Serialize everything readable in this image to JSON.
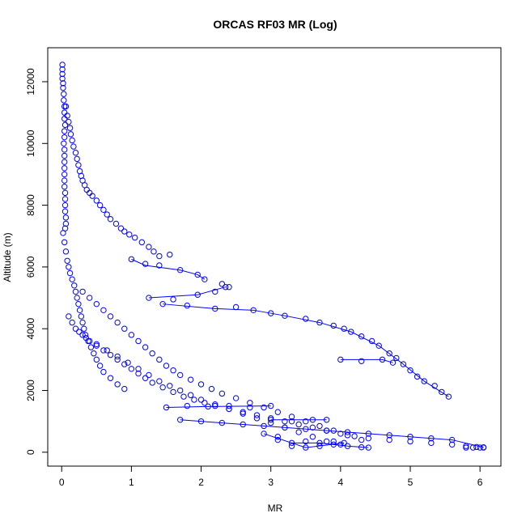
{
  "chart_data": {
    "type": "scatter",
    "title": "ORCAS RF03 MR (Log)",
    "xlabel": "MR",
    "ylabel": "Altitude (m)",
    "xlim": [
      -0.2,
      6.3
    ],
    "ylim": [
      -450,
      13100
    ],
    "x_ticks": [
      0,
      1,
      2,
      3,
      4,
      5,
      6
    ],
    "y_ticks": [
      0,
      2000,
      4000,
      6000,
      8000,
      10000,
      12000
    ],
    "grid": false,
    "legend": "none",
    "color": "#0000ff",
    "marker": "open-circle",
    "series": [
      {
        "values_note": "",
        "points": [
          [
            0.01,
            12550
          ],
          [
            0.01,
            12400
          ],
          [
            0.01,
            12250
          ],
          [
            0.01,
            12100
          ],
          [
            0.02,
            11950
          ],
          [
            0.02,
            11800
          ],
          [
            0.03,
            11600
          ],
          [
            0.03,
            11400
          ],
          [
            0.04,
            11200
          ],
          [
            0.04,
            11000
          ],
          [
            0.04,
            10800
          ],
          [
            0.05,
            10600
          ],
          [
            0.04,
            10400
          ],
          [
            0.04,
            10200
          ],
          [
            0.03,
            10000
          ],
          [
            0.04,
            9800
          ],
          [
            0.04,
            9600
          ],
          [
            0.04,
            9400
          ],
          [
            0.04,
            9200
          ],
          [
            0.04,
            9000
          ],
          [
            0.04,
            8800
          ],
          [
            0.04,
            8600
          ],
          [
            0.05,
            8400
          ],
          [
            0.05,
            8200
          ],
          [
            0.05,
            8000
          ],
          [
            0.05,
            7800
          ],
          [
            0.06,
            7600
          ],
          [
            0.06,
            7400
          ],
          [
            0.05,
            7250
          ],
          [
            0.06,
            11200
          ],
          [
            0.08,
            10900
          ],
          [
            0.1,
            10700
          ],
          [
            0.12,
            10500
          ],
          [
            0.13,
            10300
          ],
          [
            0.15,
            10100
          ],
          [
            0.17,
            9900
          ],
          [
            0.2,
            9700
          ],
          [
            0.22,
            9500
          ],
          [
            0.24,
            9300
          ],
          [
            0.26,
            9100
          ],
          [
            0.28,
            8950
          ],
          [
            0.3,
            8800
          ],
          [
            0.33,
            8650
          ],
          [
            0.36,
            8500
          ],
          [
            0.4,
            8400
          ],
          [
            0.44,
            8300
          ],
          [
            0.5,
            8150
          ],
          [
            0.55,
            8000
          ],
          [
            0.6,
            7850
          ],
          [
            0.65,
            7700
          ],
          [
            0.7,
            7550
          ],
          [
            0.78,
            7400
          ],
          [
            0.85,
            7250
          ],
          [
            0.9,
            7150
          ],
          [
            0.97,
            7050
          ],
          [
            1.05,
            6950
          ],
          [
            1.15,
            6800
          ],
          [
            1.25,
            6650
          ],
          [
            1.32,
            6500
          ],
          [
            1.4,
            6350
          ],
          [
            1.55,
            6400
          ],
          [
            1.0,
            6250
          ],
          [
            1.2,
            6100
          ],
          [
            1.4,
            6050
          ],
          [
            1.7,
            5900
          ],
          [
            1.95,
            5750
          ],
          [
            2.05,
            5600
          ],
          [
            2.3,
            5450
          ],
          [
            2.4,
            5350
          ],
          [
            1.25,
            5000
          ],
          [
            1.6,
            4950
          ],
          [
            1.95,
            5100
          ],
          [
            2.2,
            5200
          ],
          [
            2.35,
            5350
          ],
          [
            1.45,
            4800
          ],
          [
            1.8,
            4750
          ],
          [
            2.2,
            4650
          ],
          [
            2.5,
            4700
          ],
          [
            2.75,
            4600
          ],
          [
            3.0,
            4500
          ],
          [
            3.2,
            4420
          ],
          [
            3.5,
            4320
          ],
          [
            3.7,
            4200
          ],
          [
            3.9,
            4100
          ],
          [
            4.05,
            4000
          ],
          [
            4.15,
            3900
          ],
          [
            4.3,
            3750
          ],
          [
            4.45,
            3600
          ],
          [
            4.55,
            3450
          ],
          [
            4.7,
            3200
          ],
          [
            4.8,
            3050
          ],
          [
            4.9,
            2850
          ],
          [
            5.0,
            2650
          ],
          [
            5.1,
            2450
          ],
          [
            5.2,
            2300
          ],
          [
            5.35,
            2150
          ],
          [
            5.45,
            1950
          ],
          [
            5.55,
            1800
          ],
          [
            4.0,
            3000
          ],
          [
            4.3,
            2950
          ],
          [
            4.6,
            3000
          ],
          [
            4.75,
            2900
          ],
          [
            0.02,
            7100
          ],
          [
            0.04,
            6800
          ],
          [
            0.06,
            6500
          ],
          [
            0.08,
            6200
          ],
          [
            0.1,
            6000
          ],
          [
            0.12,
            5800
          ],
          [
            0.15,
            5600
          ],
          [
            0.18,
            5400
          ],
          [
            0.2,
            5200
          ],
          [
            0.22,
            5000
          ],
          [
            0.24,
            4800
          ],
          [
            0.26,
            4600
          ],
          [
            0.28,
            4400
          ],
          [
            0.3,
            4200
          ],
          [
            0.32,
            4000
          ],
          [
            0.34,
            3800
          ],
          [
            0.38,
            3600
          ],
          [
            0.42,
            3400
          ],
          [
            0.46,
            3200
          ],
          [
            0.5,
            3000
          ],
          [
            0.55,
            2800
          ],
          [
            0.6,
            2600
          ],
          [
            0.7,
            2400
          ],
          [
            0.8,
            2200
          ],
          [
            0.9,
            2050
          ],
          [
            0.1,
            4400
          ],
          [
            0.15,
            4200
          ],
          [
            0.2,
            4000
          ],
          [
            0.3,
            3800
          ],
          [
            0.4,
            3600
          ],
          [
            0.5,
            3450
          ],
          [
            0.6,
            3300
          ],
          [
            0.7,
            3150
          ],
          [
            0.8,
            3000
          ],
          [
            0.9,
            2850
          ],
          [
            1.0,
            2700
          ],
          [
            1.1,
            2550
          ],
          [
            1.2,
            2400
          ],
          [
            1.3,
            2250
          ],
          [
            1.45,
            2100
          ],
          [
            1.6,
            1950
          ],
          [
            1.75,
            1800
          ],
          [
            1.9,
            1700
          ],
          [
            2.05,
            1600
          ],
          [
            2.2,
            1500
          ],
          [
            2.4,
            1400
          ],
          [
            2.6,
            1300
          ],
          [
            2.8,
            1200
          ],
          [
            3.0,
            1100
          ],
          [
            3.2,
            1000
          ],
          [
            3.4,
            900
          ],
          [
            3.6,
            800
          ],
          [
            3.8,
            700
          ],
          [
            4.0,
            600
          ],
          [
            4.2,
            520
          ],
          [
            4.4,
            450
          ],
          [
            4.7,
            400
          ],
          [
            5.0,
            350
          ],
          [
            5.3,
            300
          ],
          [
            5.6,
            250
          ],
          [
            5.8,
            200
          ],
          [
            5.95,
            170
          ],
          [
            6.05,
            150
          ],
          [
            0.3,
            5200
          ],
          [
            0.4,
            5000
          ],
          [
            0.5,
            4800
          ],
          [
            0.6,
            4600
          ],
          [
            0.7,
            4400
          ],
          [
            0.8,
            4200
          ],
          [
            0.9,
            4000
          ],
          [
            1.0,
            3800
          ],
          [
            1.1,
            3600
          ],
          [
            1.2,
            3400
          ],
          [
            1.3,
            3200
          ],
          [
            1.4,
            3000
          ],
          [
            1.5,
            2800
          ],
          [
            1.6,
            2650
          ],
          [
            1.7,
            2500
          ],
          [
            1.85,
            2350
          ],
          [
            2.0,
            2200
          ],
          [
            2.15,
            2050
          ],
          [
            2.3,
            1900
          ],
          [
            2.5,
            1750
          ],
          [
            2.7,
            1600
          ],
          [
            2.9,
            1450
          ],
          [
            3.1,
            1300
          ],
          [
            3.3,
            1150
          ],
          [
            3.5,
            1000
          ],
          [
            3.7,
            850
          ],
          [
            3.9,
            700
          ],
          [
            4.1,
            550
          ],
          [
            4.3,
            400
          ],
          [
            0.25,
            3900
          ],
          [
            0.35,
            3700
          ],
          [
            0.5,
            3500
          ],
          [
            0.65,
            3300
          ],
          [
            0.8,
            3100
          ],
          [
            0.95,
            2900
          ],
          [
            1.1,
            2700
          ],
          [
            1.25,
            2500
          ],
          [
            1.4,
            2300
          ],
          [
            1.55,
            2150
          ],
          [
            1.7,
            2000
          ],
          [
            1.85,
            1850
          ],
          [
            2.0,
            1700
          ],
          [
            2.2,
            1550
          ],
          [
            2.4,
            1400
          ],
          [
            2.6,
            1250
          ],
          [
            2.8,
            1100
          ],
          [
            3.0,
            950
          ],
          [
            3.2,
            800
          ],
          [
            3.4,
            650
          ],
          [
            3.6,
            500
          ],
          [
            3.8,
            350
          ],
          [
            4.0,
            250
          ],
          [
            1.5,
            1450
          ],
          [
            1.8,
            1500
          ],
          [
            2.1,
            1480
          ],
          [
            2.4,
            1500
          ],
          [
            2.7,
            1450
          ],
          [
            3.0,
            1500
          ],
          [
            1.7,
            1050
          ],
          [
            2.0,
            1000
          ],
          [
            2.3,
            950
          ],
          [
            2.6,
            900
          ],
          [
            2.9,
            850
          ],
          [
            3.2,
            800
          ],
          [
            3.5,
            750
          ],
          [
            3.8,
            700
          ],
          [
            4.1,
            650
          ],
          [
            4.4,
            600
          ],
          [
            4.7,
            550
          ],
          [
            5.0,
            500
          ],
          [
            5.3,
            450
          ],
          [
            5.6,
            400
          ],
          [
            3.0,
            1050
          ],
          [
            3.3,
            1000
          ],
          [
            3.6,
            1050
          ],
          [
            3.8,
            1050
          ],
          [
            3.1,
            400
          ],
          [
            3.3,
            300
          ],
          [
            3.5,
            350
          ],
          [
            3.7,
            300
          ],
          [
            3.9,
            250
          ],
          [
            4.1,
            200
          ],
          [
            4.3,
            160
          ],
          [
            4.4,
            150
          ],
          [
            2.9,
            600
          ],
          [
            3.1,
            500
          ],
          [
            3.3,
            200
          ],
          [
            3.5,
            150
          ],
          [
            3.7,
            200
          ],
          [
            3.9,
            350
          ],
          [
            4.05,
            300
          ],
          [
            5.8,
            150
          ],
          [
            5.9,
            150
          ],
          [
            6.0,
            150
          ],
          [
            6.05,
            160
          ]
        ]
      }
    ],
    "lines": [
      [
        [
          1.0,
          6250
        ],
        [
          1.2,
          6050
        ],
        [
          1.7,
          5900
        ],
        [
          1.95,
          5750
        ],
        [
          2.05,
          5600
        ]
      ],
      [
        [
          1.25,
          5000
        ],
        [
          1.95,
          5100
        ],
        [
          2.35,
          5350
        ]
      ],
      [
        [
          1.45,
          4800
        ],
        [
          2.2,
          4650
        ],
        [
          2.75,
          4600
        ],
        [
          3.2,
          4420
        ],
        [
          3.7,
          4200
        ],
        [
          4.15,
          3900
        ],
        [
          4.55,
          3450
        ],
        [
          4.9,
          2850
        ],
        [
          5.2,
          2300
        ],
        [
          5.55,
          1800
        ]
      ],
      [
        [
          4.0,
          3000
        ],
        [
          4.6,
          3000
        ],
        [
          4.75,
          2900
        ]
      ],
      [
        [
          1.5,
          1450
        ],
        [
          2.1,
          1480
        ],
        [
          3.0,
          1500
        ]
      ],
      [
        [
          1.7,
          1050
        ],
        [
          2.9,
          850
        ],
        [
          4.1,
          650
        ],
        [
          5.0,
          500
        ],
        [
          5.6,
          400
        ],
        [
          6.05,
          160
        ]
      ],
      [
        [
          3.0,
          1050
        ],
        [
          3.8,
          1050
        ]
      ],
      [
        [
          3.3,
          300
        ],
        [
          3.7,
          300
        ],
        [
          4.1,
          200
        ],
        [
          4.4,
          150
        ]
      ],
      [
        [
          2.9,
          600
        ],
        [
          3.5,
          150
        ],
        [
          4.05,
          300
        ]
      ]
    ]
  }
}
